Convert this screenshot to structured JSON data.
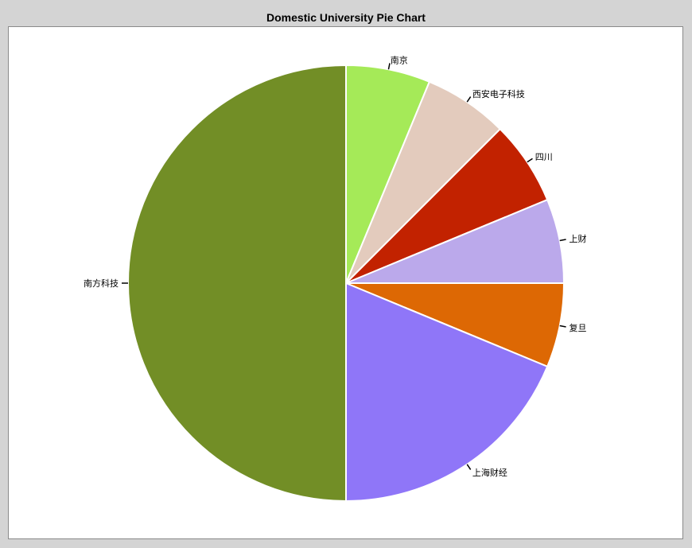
{
  "chart_data": {
    "type": "pie",
    "title": "Domestic University Pie Chart",
    "slices": [
      {
        "label": "南京",
        "value": 6.25,
        "color": "#a5ea58"
      },
      {
        "label": "西安电子科技",
        "value": 6.25,
        "color": "#e3cbbd"
      },
      {
        "label": "四川",
        "value": 6.25,
        "color": "#c22200"
      },
      {
        "label": "上财",
        "value": 6.25,
        "color": "#bba9eb"
      },
      {
        "label": "复旦",
        "value": 6.25,
        "color": "#dd6804"
      },
      {
        "label": "上海财经",
        "value": 18.75,
        "color": "#8f76f8"
      },
      {
        "label": "南方科技",
        "value": 50,
        "color": "#728e26"
      }
    ],
    "start": "top, clockwise"
  }
}
